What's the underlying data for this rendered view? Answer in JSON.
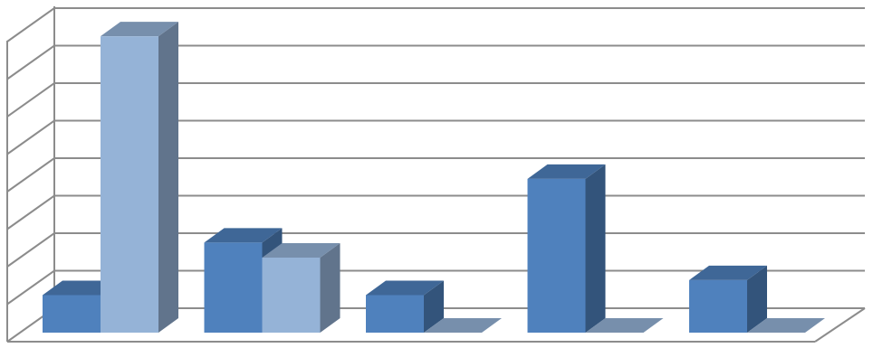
{
  "chart_data": {
    "type": "bar3d",
    "categories": [
      null,
      null,
      null,
      null,
      null
    ],
    "series": [
      {
        "color": "#4f81bd",
        "values": [
          1,
          2.4,
          1,
          4.1,
          1.4
        ]
      },
      {
        "color": "#95b3d7",
        "values": [
          7.9,
          2,
          0,
          0,
          0
        ]
      }
    ],
    "ylim": [
      0,
      8
    ],
    "yticks": [
      0,
      1,
      2,
      3,
      4,
      5,
      6,
      7,
      8
    ],
    "grid": true
  }
}
